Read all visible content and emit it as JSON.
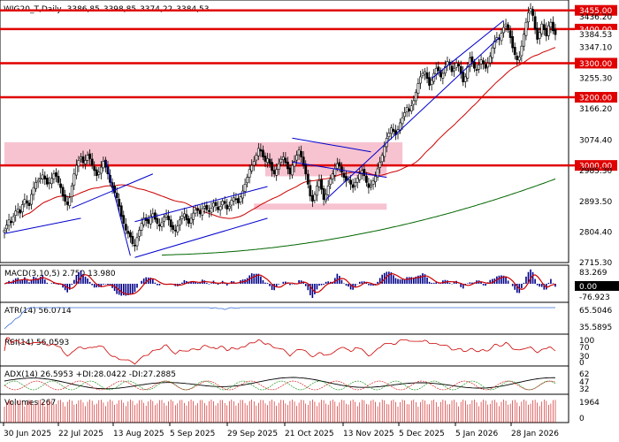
{
  "chart_data": {
    "type": "candlestick",
    "symbol": "WIG20_T,Daily",
    "header_values": [
      "3386,85",
      "3398,85",
      "3374,22",
      "3384,53"
    ],
    "y_ticks": [
      "3436.20",
      "3384.53",
      "3347.10",
      "3255.30",
      "3166.20",
      "3074.40",
      "2985.30",
      "2893.50",
      "2804.40",
      "2715.30"
    ],
    "x_labels": [
      "30 Jun 2025",
      "22 Jul 2025",
      "13 Aug 2025",
      "5 Sep 2025",
      "29 Sep 2025",
      "21 Oct 2025",
      "13 Nov 2025",
      "5 Dec 2025",
      "5 Jan 2026",
      "28 Jan 2026"
    ],
    "ylim": [
      2715,
      3475
    ],
    "levels": [
      {
        "value": 3455,
        "label": "3455.00"
      },
      {
        "value": 3400,
        "label": "3400.00"
      },
      {
        "value": 3300,
        "label": "3300.00"
      },
      {
        "value": 3200,
        "label": "3200.00"
      },
      {
        "value": 3000,
        "label": "3000.00"
      }
    ],
    "last_close_label": "3384.53",
    "zones": [
      {
        "from": [
          0,
          3068
        ],
        "to": [
          177,
          3000
        ]
      },
      {
        "from": [
          116,
          3005
        ],
        "to": [
          170,
          2968
        ]
      },
      {
        "from": [
          111,
          2888
        ],
        "to": [
          170,
          2870
        ]
      }
    ],
    "trendlines": [
      {
        "from": [
          0,
          2800
        ],
        "to": [
          34,
          2845
        ],
        "color": "#0000cc"
      },
      {
        "from": [
          30,
          2875
        ],
        "to": [
          66,
          2975
        ],
        "color": "#0000cc"
      },
      {
        "from": [
          45,
          3015
        ],
        "to": [
          56,
          2735
        ],
        "color": "#0000cc"
      },
      {
        "from": [
          58,
          2730
        ],
        "to": [
          117,
          2845
        ],
        "color": "#0000cc"
      },
      {
        "from": [
          58,
          2835
        ],
        "to": [
          117,
          2938
        ],
        "color": "#0000cc"
      },
      {
        "from": [
          128,
          3080
        ],
        "to": [
          163,
          3040
        ],
        "color": "#0000cc"
      },
      {
        "from": [
          128,
          3010
        ],
        "to": [
          170,
          2965
        ],
        "color": "#0000cc"
      },
      {
        "from": [
          143,
          2900
        ],
        "to": [
          220,
          3375
        ],
        "color": "#0000cc"
      },
      {
        "from": [
          190,
          3255
        ],
        "to": [
          222,
          3425
        ],
        "color": "#0000cc"
      }
    ],
    "close": [
      2810,
      2825,
      2840,
      2832,
      2850,
      2866,
      2872,
      2860,
      2885,
      2900,
      2890,
      2882,
      2915,
      2935,
      2950,
      2956,
      2963,
      2972,
      2960,
      2945,
      2950,
      2962,
      2975,
      2968,
      2950,
      2935,
      2910,
      2895,
      2885,
      2905,
      2940,
      2975,
      3000,
      3015,
      3025,
      3008,
      3015,
      3030,
      3020,
      3000,
      2985,
      2970,
      2980,
      2995,
      3012,
      2995,
      2975,
      2950,
      2935,
      2920,
      2905,
      2880,
      2850,
      2830,
      2810,
      2800,
      2790,
      2770,
      2765,
      2788,
      2810,
      2830,
      2845,
      2838,
      2830,
      2852,
      2858,
      2842,
      2830,
      2822,
      2832,
      2848,
      2855,
      2840,
      2820,
      2812,
      2808,
      2822,
      2840,
      2852,
      2858,
      2840,
      2830,
      2845,
      2860,
      2870,
      2868,
      2858,
      2873,
      2880,
      2870,
      2865,
      2875,
      2890,
      2882,
      2870,
      2880,
      2895,
      2888,
      2872,
      2880,
      2898,
      2905,
      2900,
      2890,
      2908,
      2925,
      2945,
      2965,
      2988,
      3000,
      3012,
      3030,
      3050,
      3042,
      3025,
      3012,
      3020,
      3005,
      2985,
      2975,
      2988,
      3005,
      3018,
      3025,
      3008,
      2990,
      2975,
      3000,
      3012,
      3030,
      3045,
      3025,
      3000,
      2975,
      2945,
      2910,
      2895,
      2915,
      2940,
      2955,
      2930,
      2900,
      2915,
      2940,
      2960,
      2975,
      2990,
      3005,
      2998,
      2980,
      2965,
      2955,
      2960,
      2945,
      2935,
      2950,
      2962,
      2975,
      2985,
      2970,
      2950,
      2935,
      2942,
      2955,
      2968,
      2990,
      3010,
      3030,
      3055,
      3080,
      3095,
      3110,
      3100,
      3090,
      3105,
      3125,
      3140,
      3155,
      3170,
      3160,
      3175,
      3190,
      3215,
      3240,
      3260,
      3270,
      3275,
      3255,
      3235,
      3250,
      3270,
      3285,
      3278,
      3260,
      3270,
      3290,
      3305,
      3295,
      3275,
      3285,
      3300,
      3292,
      3270,
      3245,
      3260,
      3290,
      3315,
      3305,
      3285,
      3280,
      3295,
      3310,
      3298,
      3285,
      3300,
      3320,
      3345,
      3365,
      3375,
      3370,
      3388,
      3405,
      3415,
      3398,
      3375,
      3345,
      3325,
      3310,
      3318,
      3350,
      3385,
      3420,
      3448,
      3460,
      3440,
      3400,
      3370,
      3390,
      3415,
      3398,
      3380,
      3410,
      3420,
      3395,
      3384
    ],
    "ma50_color": "#cc0000",
    "ma200_color": "#006600",
    "panels": [
      {
        "name": "MACD",
        "label": "MACD(3,10,5) 2.750 13.980",
        "ticks": [
          "83.269",
          "0.00",
          "-76.923"
        ]
      },
      {
        "name": "ATR",
        "label": "ATR(14) 56.0714",
        "ticks": [
          "65.5046",
          "35.5895"
        ]
      },
      {
        "name": "RSI",
        "label": "RSI(14) 56.0593",
        "ticks": [
          "100",
          "70",
          "30",
          "0"
        ]
      },
      {
        "name": "ADX",
        "label": "ADX(14) 26.5953 +DI:28.0422 -DI:27.2885",
        "ticks": [
          "62",
          "47",
          "32"
        ]
      },
      {
        "name": "Volume",
        "label": "Volumes 267",
        "ticks": [
          "1964",
          "0"
        ]
      }
    ]
  }
}
